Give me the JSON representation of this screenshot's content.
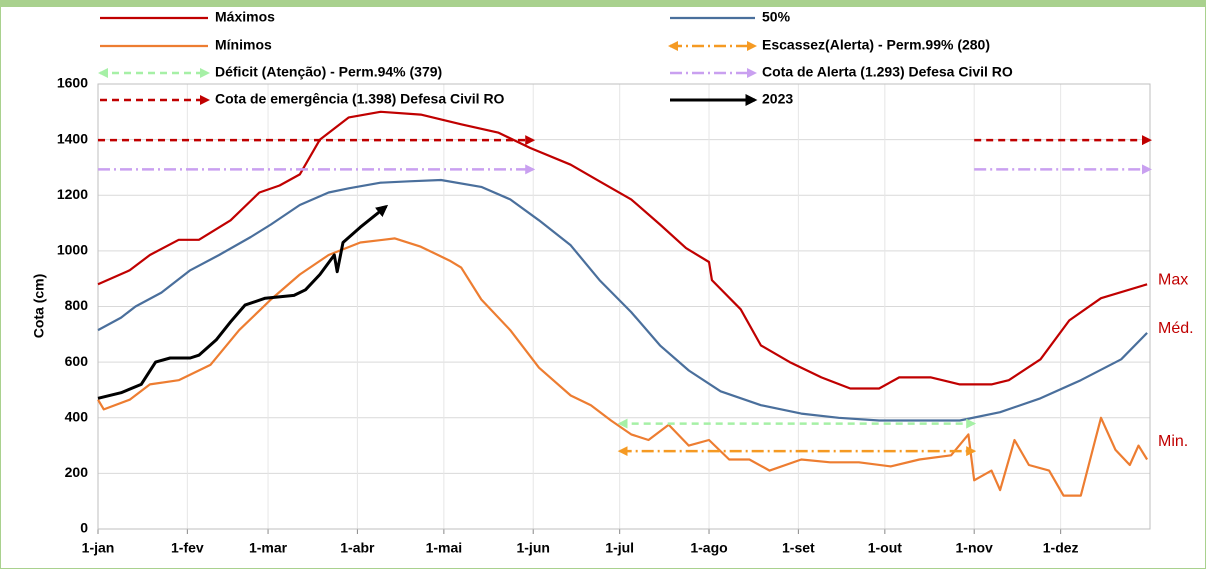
{
  "chart_data": {
    "type": "line",
    "y_label": "Cota (cm)",
    "xlim": [
      0,
      365
    ],
    "xticks": [
      {
        "value": 0,
        "label": "1-jan"
      },
      {
        "value": 31,
        "label": "1-fev"
      },
      {
        "value": 59,
        "label": "1-mar"
      },
      {
        "value": 90,
        "label": "1-abr"
      },
      {
        "value": 120,
        "label": "1-mai"
      },
      {
        "value": 151,
        "label": "1-jun"
      },
      {
        "value": 181,
        "label": "1-jul"
      },
      {
        "value": 212,
        "label": "1-ago"
      },
      {
        "value": 243,
        "label": "1-set"
      },
      {
        "value": 273,
        "label": "1-out"
      },
      {
        "value": 304,
        "label": "1-nov"
      },
      {
        "value": 334,
        "label": "1-dez"
      }
    ],
    "ylim": [
      0,
      1600
    ],
    "yticks": [
      0,
      200,
      400,
      600,
      800,
      1000,
      1200,
      1400,
      1600
    ],
    "grid": true,
    "series": [
      {
        "name": "Máximos",
        "color": "#c00000",
        "x": [
          0,
          11,
          18,
          28,
          35,
          46,
          56,
          63,
          70,
          77,
          87,
          98,
          112,
          126,
          139,
          150,
          164,
          174,
          185,
          195,
          204,
          212,
          213,
          223,
          230,
          240,
          251,
          261,
          271,
          278,
          289,
          299,
          310,
          316,
          327,
          337,
          348,
          364
        ],
        "values": [
          880,
          930,
          985,
          1040,
          1040,
          1110,
          1210,
          1235,
          1275,
          1400,
          1480,
          1500,
          1490,
          1455,
          1425,
          1370,
          1310,
          1250,
          1185,
          1095,
          1010,
          960,
          895,
          790,
          660,
          600,
          545,
          505,
          505,
          545,
          545,
          520,
          520,
          535,
          610,
          750,
          830,
          880
        ]
      },
      {
        "name": "50%",
        "color": "#4a6f9c",
        "x": [
          0,
          8,
          13,
          22,
          32,
          42,
          53,
          60,
          70,
          80,
          87,
          98,
          108,
          119,
          133,
          143,
          153,
          164,
          174,
          185,
          195,
          205,
          216,
          230,
          244,
          257,
          271,
          285,
          299,
          313,
          327,
          341,
          355,
          364
        ],
        "values": [
          715,
          760,
          800,
          850,
          930,
          985,
          1050,
          1095,
          1165,
          1210,
          1225,
          1245,
          1250,
          1255,
          1230,
          1185,
          1110,
          1020,
          895,
          780,
          660,
          570,
          495,
          445,
          415,
          400,
          390,
          390,
          390,
          420,
          470,
          535,
          610,
          705
        ]
      },
      {
        "name": "Mínimos",
        "color": "#ed7d31",
        "x": [
          0,
          2,
          11,
          18,
          28,
          39,
          49,
          60,
          70,
          80,
          91,
          103,
          112,
          122,
          126,
          133,
          143,
          153,
          164,
          171,
          178,
          185,
          191,
          198,
          205,
          212,
          219,
          226,
          233,
          244,
          254,
          264,
          275,
          285,
          296,
          302,
          304,
          310,
          313,
          318,
          323,
          330,
          335,
          341,
          346,
          348,
          353,
          358,
          361,
          364
        ],
        "values": [
          465,
          430,
          465,
          520,
          535,
          590,
          715,
          825,
          915,
          985,
          1030,
          1045,
          1015,
          965,
          940,
          825,
          715,
          580,
          480,
          445,
          390,
          340,
          320,
          375,
          300,
          320,
          250,
          250,
          210,
          250,
          240,
          240,
          225,
          250,
          265,
          340,
          175,
          210,
          140,
          320,
          230,
          210,
          120,
          120,
          320,
          400,
          285,
          230,
          300,
          250
        ]
      },
      {
        "name": "Escassez(Alerta) - Perm.99% (280)",
        "color": "#f59a23",
        "dash": "dashdot",
        "arrow": "both",
        "value": 280,
        "spans": [
          [
            181,
            304
          ]
        ]
      },
      {
        "name": "Déficit (Atenção) - Perm.94% (379)",
        "color": "#a6f0a6",
        "dash": "dash",
        "arrow": "both",
        "value": 379,
        "spans": [
          [
            181,
            304
          ]
        ]
      },
      {
        "name": "Cota de Alerta  (1.293) Defesa Civil RO",
        "color": "#c9a0f0",
        "dash": "dashdot",
        "arrow": "end",
        "value": 1293,
        "spans": [
          [
            0,
            151
          ],
          [
            304,
            365
          ]
        ]
      },
      {
        "name": "Cota de emergência (1.398) Defesa Civil RO",
        "color": "#c00000",
        "dash": "dash",
        "arrow": "end",
        "value": 1398,
        "spans": [
          [
            0,
            151
          ],
          [
            304,
            365
          ]
        ]
      },
      {
        "name": "2023",
        "color": "#000000",
        "arrow": "end",
        "x": [
          0,
          8,
          15,
          20,
          25,
          32,
          35,
          41,
          46,
          51,
          58,
          68,
          72,
          77,
          82,
          83,
          85,
          91,
          97,
          100
        ],
        "values": [
          470,
          490,
          520,
          600,
          615,
          615,
          625,
          680,
          745,
          805,
          830,
          840,
          860,
          915,
          985,
          925,
          1030,
          1085,
          1135,
          1160
        ]
      }
    ],
    "annotations": [
      {
        "text": "Max",
        "x": 365,
        "y": 880
      },
      {
        "text": "Méd.",
        "x": 365,
        "y": 705
      },
      {
        "text": "Min.",
        "x": 365,
        "y": 300
      }
    ],
    "annotation_color": "#c00000"
  }
}
